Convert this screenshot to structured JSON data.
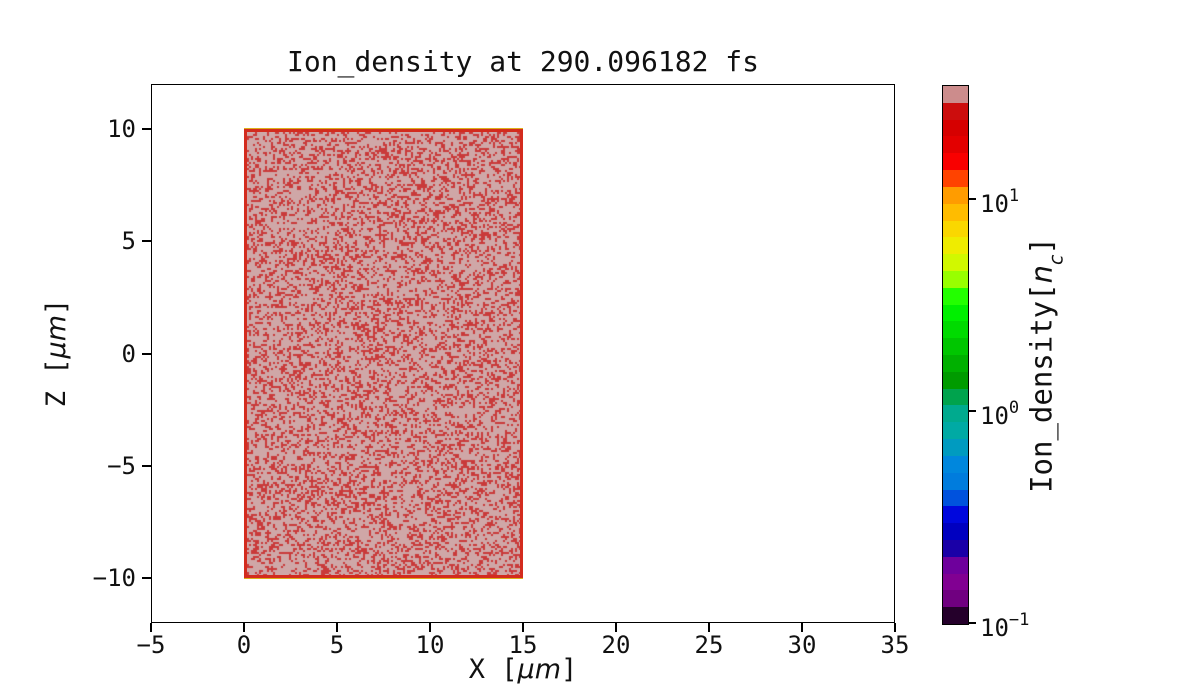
{
  "figure": {
    "background": "#ffffff"
  },
  "chart_data": {
    "type": "heatmap",
    "title": "Ion_density at 290.096182 fs",
    "xlabel": {
      "pre": "X [",
      "italic": "μm",
      "post": "]"
    },
    "ylabel": {
      "pre": "Z [",
      "italic": "μm",
      "post": "]"
    },
    "xlim": [
      -5,
      35
    ],
    "ylim": [
      -12,
      12
    ],
    "grid": false,
    "x_ticks": [
      {
        "v": -5,
        "label": "−5"
      },
      {
        "v": 0,
        "label": "0"
      },
      {
        "v": 5,
        "label": "5"
      },
      {
        "v": 10,
        "label": "10"
      },
      {
        "v": 15,
        "label": "15"
      },
      {
        "v": 20,
        "label": "20"
      },
      {
        "v": 25,
        "label": "25"
      },
      {
        "v": 30,
        "label": "30"
      },
      {
        "v": 35,
        "label": "35"
      }
    ],
    "y_ticks": [
      {
        "v": 10,
        "label": "10"
      },
      {
        "v": 5,
        "label": "5"
      },
      {
        "v": 0,
        "label": "0"
      },
      {
        "v": -5,
        "label": "−5"
      },
      {
        "v": -10,
        "label": "−10"
      }
    ],
    "slab": {
      "x_min": 0,
      "x_max": 15,
      "z_min": -10,
      "z_max": 10,
      "fill_color": "#cfa7a7",
      "speckle_color": "#c93a3a",
      "edge_color": "#d32b1e",
      "outer_edge_color": "#ddaf1d",
      "speckle_fraction": 0.18
    },
    "colorbar": {
      "label": {
        "pre": "Ion_density[",
        "italic": "n",
        "sub": "c",
        "post": "]"
      },
      "scale": "log",
      "vmin": 0.1,
      "vmax": 34.5,
      "colormap": "nipy_spectral",
      "n_bands": 32,
      "ticks": [
        {
          "value": 10,
          "base": "10",
          "exp": "1"
        },
        {
          "value": 1,
          "base": "10",
          "exp": "0"
        },
        {
          "value": 0.1,
          "base": "10",
          "exp": "−1"
        }
      ],
      "band_colors_bottom_to_top": [
        "#25002b",
        "#700080",
        "#810092",
        "#6e009c",
        "#1a00a7",
        "#0000c0",
        "#0007dd",
        "#0052dd",
        "#007cdd",
        "#0087dd",
        "#009bc0",
        "#00aaa4",
        "#00aa8e",
        "#00a34d",
        "#009b00",
        "#00b000",
        "#00c600",
        "#00db00",
        "#00f000",
        "#23ff00",
        "#98ff00",
        "#d1f800",
        "#efec00",
        "#fad700",
        "#ffbc00",
        "#ff9c00",
        "#ff4300",
        "#f90000",
        "#e30000",
        "#d60000",
        "#cc0d0d",
        "#cc8c8c"
      ]
    }
  }
}
